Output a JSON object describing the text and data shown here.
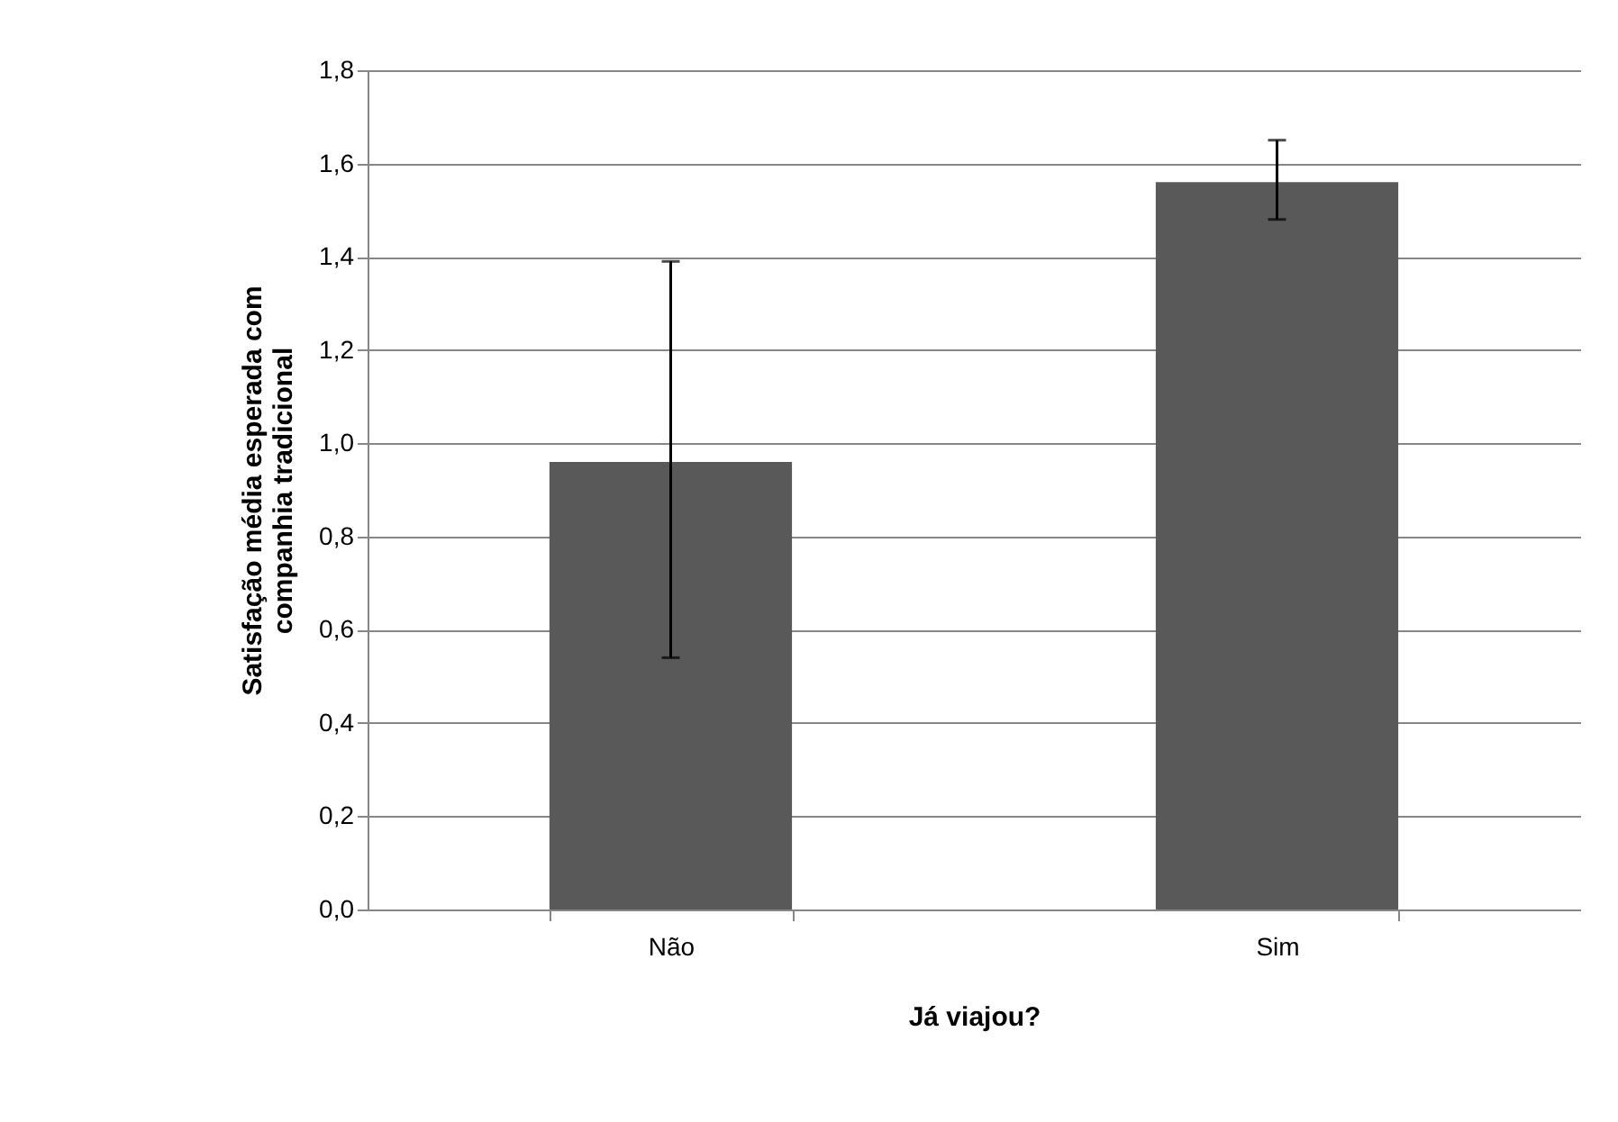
{
  "chart_data": {
    "type": "bar",
    "xlabel": "Já viajou?",
    "ylabel": "Satisfação média esperada com companhia tradicional",
    "categories": [
      "Não",
      "Sim"
    ],
    "values": [
      0.96,
      1.56
    ],
    "errors": [
      [
        0.54,
        1.39
      ],
      [
        1.48,
        1.65
      ]
    ],
    "color": "#595959",
    "ylim": [
      0,
      1.8
    ],
    "yticks": [
      {
        "value": 0,
        "label": "0,0"
      },
      {
        "value": 0.2,
        "label": "0,2"
      },
      {
        "value": 0.4,
        "label": "0,4"
      },
      {
        "value": 0.6,
        "label": "0,6"
      },
      {
        "value": 0.8,
        "label": "0,8"
      },
      {
        "value": 1.0,
        "label": "1,0"
      },
      {
        "value": 1.2,
        "label": "1,2"
      },
      {
        "value": 1.4,
        "label": "1,4"
      },
      {
        "value": 1.6,
        "label": "1,6"
      },
      {
        "value": 1.8,
        "label": "1,8"
      }
    ],
    "grid": "y"
  }
}
